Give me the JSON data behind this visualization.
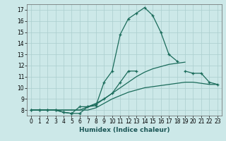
{
  "xlabel": "Humidex (Indice chaleur)",
  "xlim": [
    -0.5,
    23.5
  ],
  "ylim": [
    7.5,
    17.5
  ],
  "yticks": [
    8,
    9,
    10,
    11,
    12,
    13,
    14,
    15,
    16,
    17
  ],
  "xticks": [
    0,
    1,
    2,
    3,
    4,
    5,
    6,
    7,
    8,
    9,
    10,
    11,
    12,
    13,
    14,
    15,
    16,
    17,
    18,
    19,
    20,
    21,
    22,
    23
  ],
  "bg_color": "#cce8e8",
  "grid_color": "#aacece",
  "line_color": "#1a6b5a",
  "lines": [
    {
      "x": [
        0,
        1,
        2,
        3,
        4,
        5,
        6,
        7,
        8,
        9,
        10,
        11,
        12,
        13,
        14,
        15,
        16,
        17,
        18,
        19,
        20
      ],
      "y": [
        8.0,
        8.0,
        8.0,
        8.0,
        7.8,
        7.7,
        7.7,
        8.3,
        8.4,
        10.5,
        11.5,
        14.8,
        16.2,
        16.7,
        17.2,
        16.5,
        15.0,
        13.0,
        12.4,
        null,
        null
      ],
      "marker": true
    },
    {
      "x": [
        0,
        1,
        2,
        3,
        4,
        5,
        6,
        7,
        8,
        9,
        10,
        11,
        12,
        13,
        14,
        15,
        16,
        17,
        18,
        19,
        20,
        21,
        22,
        23
      ],
      "y": [
        8.0,
        8.0,
        8.0,
        8.0,
        7.8,
        7.7,
        8.3,
        8.3,
        8.5,
        9.0,
        9.5,
        10.5,
        11.5,
        11.5,
        null,
        null,
        null,
        null,
        null,
        11.5,
        11.3,
        11.3,
        10.5,
        10.3
      ],
      "marker": true
    },
    {
      "x": [
        0,
        1,
        2,
        3,
        4,
        5,
        6,
        7,
        8,
        9,
        10,
        11,
        12,
        13,
        14,
        15,
        16,
        17,
        18,
        19,
        20,
        21,
        22,
        23
      ],
      "y": [
        8.0,
        8.0,
        8.0,
        8.0,
        8.0,
        8.0,
        8.0,
        8.3,
        8.6,
        9.0,
        9.5,
        10.0,
        10.5,
        11.0,
        11.4,
        11.7,
        11.9,
        12.1,
        12.2,
        12.3,
        null,
        null,
        null,
        null
      ],
      "marker": false
    },
    {
      "x": [
        0,
        1,
        2,
        3,
        4,
        5,
        6,
        7,
        8,
        9,
        10,
        11,
        12,
        13,
        14,
        15,
        16,
        17,
        18,
        19,
        20,
        21,
        22,
        23
      ],
      "y": [
        8.0,
        8.0,
        8.0,
        8.0,
        8.0,
        8.0,
        8.0,
        8.0,
        8.2,
        8.6,
        9.0,
        9.3,
        9.6,
        9.8,
        10.0,
        10.1,
        10.2,
        10.3,
        10.4,
        10.5,
        10.5,
        10.4,
        10.3,
        10.3
      ],
      "marker": false
    }
  ]
}
